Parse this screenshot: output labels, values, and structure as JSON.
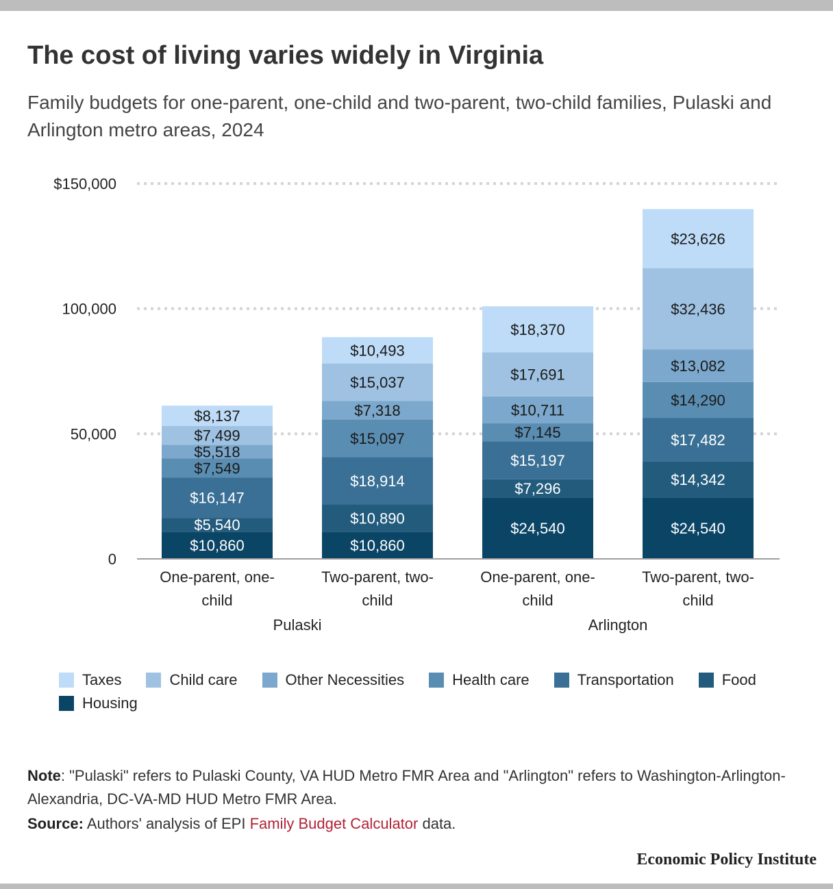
{
  "title": "The cost of living varies widely in Virginia",
  "subtitle": "Family budgets for one-parent, one-child and two-parent, two-child families, Pulaski and Arlington metro areas, 2024",
  "note": {
    "label": "Note",
    "text": ": \"Pulaski\" refers to Pulaski County, VA HUD Metro FMR Area and \"Arlington\" refers to Washington-Arlington-Alexandria, DC-VA-MD HUD Metro FMR Area."
  },
  "source": {
    "label": "Source:",
    "text_before": " Authors' analysis of EPI ",
    "link_text": "Family Budget Calculator",
    "text_after": " data."
  },
  "brand": "Economic Policy Institute",
  "chart_data": {
    "type": "bar",
    "stacked": true,
    "categories": [
      "One-parent, one-child",
      "Two-parent, two-child",
      "One-parent, one-child",
      "Two-parent, two-child"
    ],
    "category_lines": [
      [
        "One-parent, one-",
        "child"
      ],
      [
        "Two-parent, two-",
        "child"
      ],
      [
        "One-parent, one-",
        "child"
      ],
      [
        "Two-parent, two-",
        "child"
      ]
    ],
    "groups": [
      {
        "name": "Pulaski",
        "categories": [
          0,
          1
        ]
      },
      {
        "name": "Arlington",
        "categories": [
          2,
          3
        ]
      }
    ],
    "series": [
      {
        "name": "Housing",
        "color": "#0b4566",
        "label_color": "#ffffff",
        "values": [
          10860,
          10860,
          24540,
          24540
        ]
      },
      {
        "name": "Food",
        "color": "#235b7d",
        "label_color": "#ffffff",
        "values": [
          5540,
          10890,
          7296,
          14342
        ]
      },
      {
        "name": "Transportation",
        "color": "#3a7095",
        "label_color": "#ffffff",
        "values": [
          16147,
          18914,
          15197,
          17482
        ]
      },
      {
        "name": "Health care",
        "color": "#5a8db2",
        "label_color": "#1a1a1a",
        "values": [
          7549,
          15097,
          7145,
          14290
        ]
      },
      {
        "name": "Other Necessities",
        "color": "#7ba8cc",
        "label_color": "#1a1a1a",
        "values": [
          5518,
          7318,
          10711,
          13082
        ]
      },
      {
        "name": "Child care",
        "color": "#9fc2e2",
        "label_color": "#1a1a1a",
        "values": [
          7499,
          15037,
          17691,
          32436
        ]
      },
      {
        "name": "Taxes",
        "color": "#bedcf7",
        "label_color": "#1a1a1a",
        "values": [
          8137,
          10493,
          18370,
          23626
        ]
      }
    ],
    "data_labels": [
      [
        "$10,860",
        "$10,860",
        "$24,540",
        "$24,540"
      ],
      [
        "$5,540",
        "$10,890",
        "$7,296",
        "$14,342"
      ],
      [
        "$16,147",
        "$18,914",
        "$15,197",
        "$17,482"
      ],
      [
        "$7,549",
        "$15,097",
        "$7,145",
        "$14,290"
      ],
      [
        "$5,518",
        "$7,318",
        "$10,711",
        "$13,082"
      ],
      [
        "$7,499",
        "$15,037",
        "$17,691",
        "$32,436"
      ],
      [
        "$8,137",
        "$10,493",
        "$18,370",
        "$23,626"
      ]
    ],
    "legend_order": [
      "Taxes",
      "Child care",
      "Other Necessities",
      "Health care",
      "Transportation",
      "Food",
      "Housing"
    ],
    "ylim": [
      0,
      150000
    ],
    "yticks": [
      0,
      50000,
      100000,
      150000
    ],
    "ytick_labels": [
      "0",
      "50,000",
      "100,000",
      "$150,000"
    ],
    "grid": true,
    "legend_position": "bottom"
  }
}
